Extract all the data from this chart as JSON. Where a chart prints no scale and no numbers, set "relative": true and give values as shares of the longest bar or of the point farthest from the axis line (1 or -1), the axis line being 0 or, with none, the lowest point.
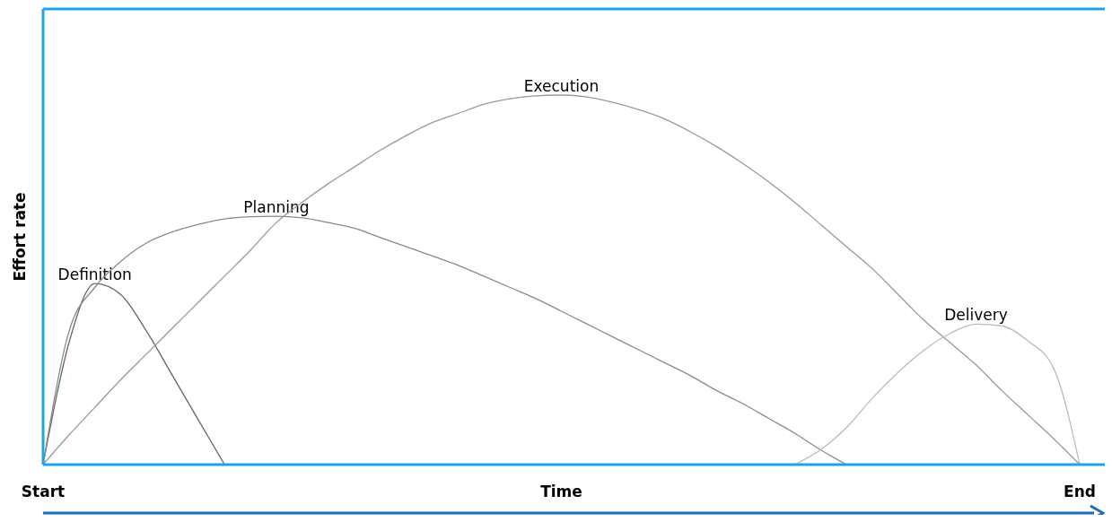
{
  "chart_data": {
    "type": "line",
    "relative": true,
    "xlabel": "Time",
    "ylabel": "Effort rate",
    "marker": "none",
    "line_style": "solid",
    "categories": [
      "Start",
      null,
      null,
      null,
      null,
      null,
      null,
      null,
      null,
      null,
      null,
      null,
      null,
      null,
      null,
      null,
      null,
      null,
      null,
      null,
      null,
      null,
      null,
      null,
      null,
      null,
      null,
      null,
      null,
      null,
      null,
      null,
      null,
      null,
      null,
      null,
      null,
      null,
      null,
      null,
      "End"
    ],
    "series": [
      {
        "name": "Definition",
        "color": "#666666",
        "values": [
          0,
          0.33,
          0.49,
          0.46,
          0.36,
          0.24,
          0.12,
          0,
          null,
          null,
          null,
          null,
          null,
          null,
          null,
          null,
          null,
          null,
          null,
          null,
          null,
          null,
          null,
          null,
          null,
          null,
          null,
          null,
          null,
          null,
          null,
          null,
          null,
          null,
          null,
          null,
          null,
          null,
          null,
          null,
          null
        ]
      },
      {
        "name": "Planning",
        "color": "#8a8a8a",
        "values": [
          0,
          0.36,
          0.48,
          0.55,
          0.6,
          0.63,
          0.65,
          0.665,
          0.671,
          0.672,
          0.668,
          0.655,
          0.64,
          0.615,
          0.59,
          0.565,
          0.54,
          0.51,
          0.48,
          0.45,
          0.415,
          0.38,
          0.345,
          0.31,
          0.275,
          0.24,
          0.2,
          0.165,
          0.125,
          0.085,
          0.04,
          0,
          null,
          null,
          null,
          null,
          null,
          null,
          null,
          null,
          null
        ]
      },
      {
        "name": "Execution",
        "color": "#999999",
        "values": [
          0,
          0.08,
          0.155,
          0.23,
          0.3,
          0.37,
          0.44,
          0.51,
          0.58,
          0.655,
          0.71,
          0.76,
          0.805,
          0.85,
          0.89,
          0.925,
          0.95,
          0.975,
          0.99,
          0.998,
          1,
          0.995,
          0.98,
          0.96,
          0.935,
          0.9,
          0.86,
          0.815,
          0.765,
          0.71,
          0.65,
          0.59,
          0.53,
          0.46,
          0.39,
          0.33,
          0.27,
          0.2,
          0.135,
          0.07,
          0
        ]
      },
      {
        "name": "Delivery",
        "color": "#bbbbbb",
        "values": [
          null,
          null,
          null,
          null,
          null,
          null,
          null,
          null,
          null,
          null,
          null,
          null,
          null,
          null,
          null,
          null,
          null,
          null,
          null,
          null,
          null,
          null,
          null,
          null,
          null,
          null,
          null,
          null,
          null,
          0,
          0.04,
          0.1,
          0.18,
          0.25,
          0.31,
          0.355,
          0.38,
          0.375,
          0.335,
          0.26,
          0
        ]
      }
    ]
  }
}
